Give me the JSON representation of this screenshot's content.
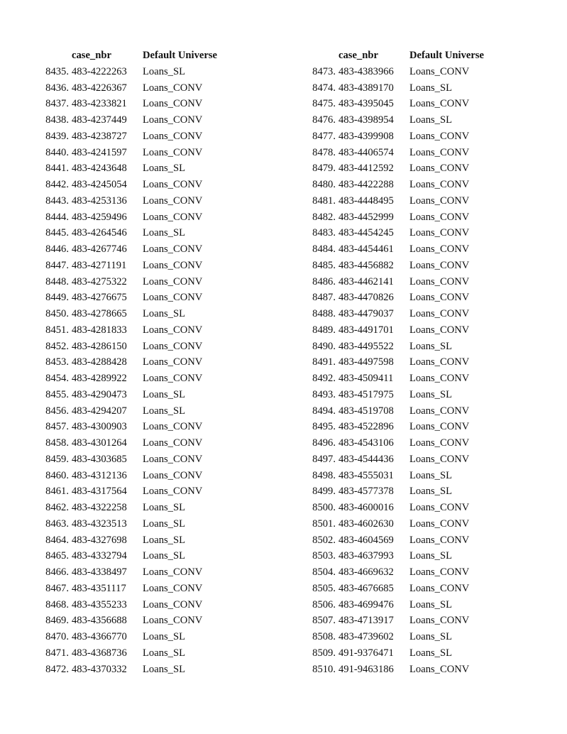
{
  "headers": {
    "case": "case_nbr",
    "universe": "Default Universe"
  },
  "columns": [
    [
      [
        "8435.",
        "483-4222263",
        "Loans_SL"
      ],
      [
        "8436.",
        "483-4226367",
        "Loans_CONV"
      ],
      [
        "8437.",
        "483-4233821",
        "Loans_CONV"
      ],
      [
        "8438.",
        "483-4237449",
        "Loans_CONV"
      ],
      [
        "8439.",
        "483-4238727",
        "Loans_CONV"
      ],
      [
        "8440.",
        "483-4241597",
        "Loans_CONV"
      ],
      [
        "8441.",
        "483-4243648",
        "Loans_SL"
      ],
      [
        "8442.",
        "483-4245054",
        "Loans_CONV"
      ],
      [
        "8443.",
        "483-4253136",
        "Loans_CONV"
      ],
      [
        "8444.",
        "483-4259496",
        "Loans_CONV"
      ],
      [
        "8445.",
        "483-4264546",
        "Loans_SL"
      ],
      [
        "8446.",
        "483-4267746",
        "Loans_CONV"
      ],
      [
        "8447.",
        "483-4271191",
        "Loans_CONV"
      ],
      [
        "8448.",
        "483-4275322",
        "Loans_CONV"
      ],
      [
        "8449.",
        "483-4276675",
        "Loans_CONV"
      ],
      [
        "8450.",
        "483-4278665",
        "Loans_SL"
      ],
      [
        "8451.",
        "483-4281833",
        "Loans_CONV"
      ],
      [
        "8452.",
        "483-4286150",
        "Loans_CONV"
      ],
      [
        "8453.",
        "483-4288428",
        "Loans_CONV"
      ],
      [
        "8454.",
        "483-4289922",
        "Loans_CONV"
      ],
      [
        "8455.",
        "483-4290473",
        "Loans_SL"
      ],
      [
        "8456.",
        "483-4294207",
        "Loans_SL"
      ],
      [
        "8457.",
        "483-4300903",
        "Loans_CONV"
      ],
      [
        "8458.",
        "483-4301264",
        "Loans_CONV"
      ],
      [
        "8459.",
        "483-4303685",
        "Loans_CONV"
      ],
      [
        "8460.",
        "483-4312136",
        "Loans_CONV"
      ],
      [
        "8461.",
        "483-4317564",
        "Loans_CONV"
      ],
      [
        "8462.",
        "483-4322258",
        "Loans_SL"
      ],
      [
        "8463.",
        "483-4323513",
        "Loans_SL"
      ],
      [
        "8464.",
        "483-4327698",
        "Loans_SL"
      ],
      [
        "8465.",
        "483-4332794",
        "Loans_SL"
      ],
      [
        "8466.",
        "483-4338497",
        "Loans_CONV"
      ],
      [
        "8467.",
        "483-4351117",
        "Loans_CONV"
      ],
      [
        "8468.",
        "483-4355233",
        "Loans_CONV"
      ],
      [
        "8469.",
        "483-4356688",
        "Loans_CONV"
      ],
      [
        "8470.",
        "483-4366770",
        "Loans_SL"
      ],
      [
        "8471.",
        "483-4368736",
        "Loans_SL"
      ],
      [
        "8472.",
        "483-4370332",
        "Loans_SL"
      ]
    ],
    [
      [
        "8473.",
        "483-4383966",
        "Loans_CONV"
      ],
      [
        "8474.",
        "483-4389170",
        "Loans_SL"
      ],
      [
        "8475.",
        "483-4395045",
        "Loans_CONV"
      ],
      [
        "8476.",
        "483-4398954",
        "Loans_SL"
      ],
      [
        "8477.",
        "483-4399908",
        "Loans_CONV"
      ],
      [
        "8478.",
        "483-4406574",
        "Loans_CONV"
      ],
      [
        "8479.",
        "483-4412592",
        "Loans_CONV"
      ],
      [
        "8480.",
        "483-4422288",
        "Loans_CONV"
      ],
      [
        "8481.",
        "483-4448495",
        "Loans_CONV"
      ],
      [
        "8482.",
        "483-4452999",
        "Loans_CONV"
      ],
      [
        "8483.",
        "483-4454245",
        "Loans_CONV"
      ],
      [
        "8484.",
        "483-4454461",
        "Loans_CONV"
      ],
      [
        "8485.",
        "483-4456882",
        "Loans_CONV"
      ],
      [
        "8486.",
        "483-4462141",
        "Loans_CONV"
      ],
      [
        "8487.",
        "483-4470826",
        "Loans_CONV"
      ],
      [
        "8488.",
        "483-4479037",
        "Loans_CONV"
      ],
      [
        "8489.",
        "483-4491701",
        "Loans_CONV"
      ],
      [
        "8490.",
        "483-4495522",
        "Loans_SL"
      ],
      [
        "8491.",
        "483-4497598",
        "Loans_CONV"
      ],
      [
        "8492.",
        "483-4509411",
        "Loans_CONV"
      ],
      [
        "8493.",
        "483-4517975",
        "Loans_SL"
      ],
      [
        "8494.",
        "483-4519708",
        "Loans_CONV"
      ],
      [
        "8495.",
        "483-4522896",
        "Loans_CONV"
      ],
      [
        "8496.",
        "483-4543106",
        "Loans_CONV"
      ],
      [
        "8497.",
        "483-4544436",
        "Loans_CONV"
      ],
      [
        "8498.",
        "483-4555031",
        "Loans_SL"
      ],
      [
        "8499.",
        "483-4577378",
        "Loans_SL"
      ],
      [
        "8500.",
        "483-4600016",
        "Loans_CONV"
      ],
      [
        "8501.",
        "483-4602630",
        "Loans_CONV"
      ],
      [
        "8502.",
        "483-4604569",
        "Loans_CONV"
      ],
      [
        "8503.",
        "483-4637993",
        "Loans_SL"
      ],
      [
        "8504.",
        "483-4669632",
        "Loans_CONV"
      ],
      [
        "8505.",
        "483-4676685",
        "Loans_CONV"
      ],
      [
        "8506.",
        "483-4699476",
        "Loans_SL"
      ],
      [
        "8507.",
        "483-4713917",
        "Loans_CONV"
      ],
      [
        "8508.",
        "483-4739602",
        "Loans_SL"
      ],
      [
        "8509.",
        "491-9376471",
        "Loans_SL"
      ],
      [
        "8510.",
        "491-9463186",
        "Loans_CONV"
      ]
    ]
  ]
}
